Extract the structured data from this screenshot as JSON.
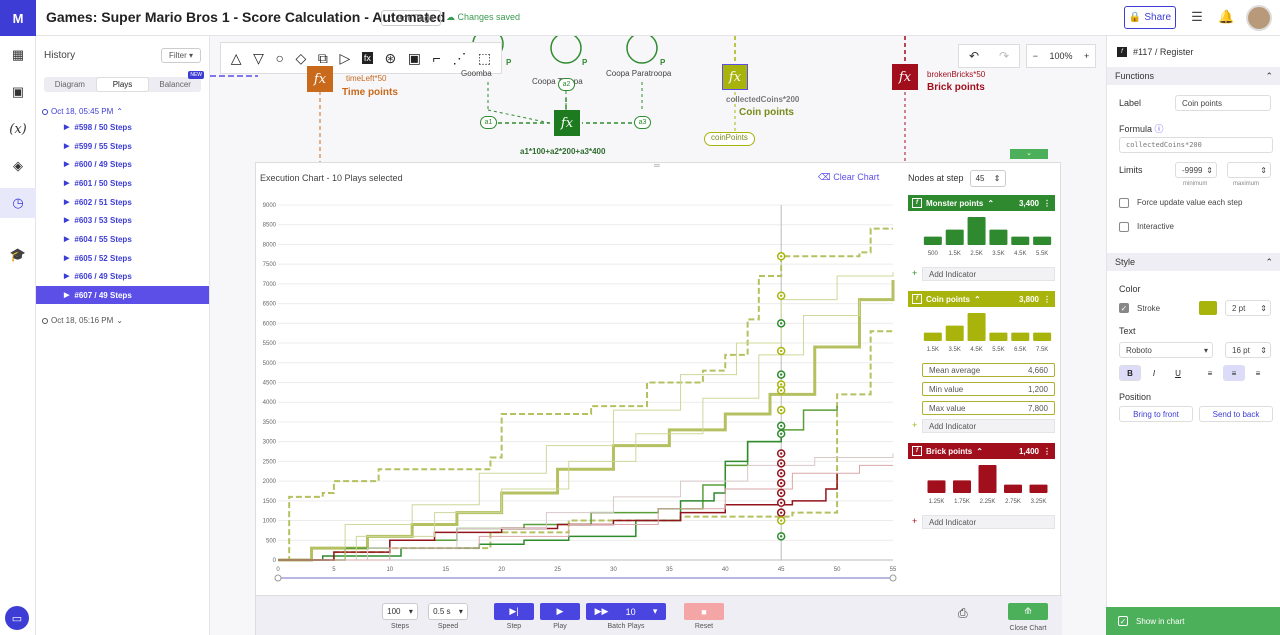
{
  "app": {
    "logo": "M",
    "title": "Games: Super Mario Bros 1 - Score Calculation - Automated",
    "add_tags": "Add Tags",
    "saved": "Changes saved",
    "share": "Share"
  },
  "icons": {
    "logo": "logo-icon",
    "sliders": "sliders-icon",
    "bell": "bell-icon"
  },
  "history": {
    "title": "History",
    "filter": "Filter",
    "tabs": [
      "Diagram",
      "Plays",
      "Balancer"
    ],
    "new_badge": "NEW",
    "session1": "Oct 18, 05:45 PM",
    "items": [
      "#598 / 50 Steps",
      "#599 / 55 Steps",
      "#600 / 49 Steps",
      "#601 / 50 Steps",
      "#602 / 51 Steps",
      "#603 / 53 Steps",
      "#604 / 55 Steps",
      "#605 / 52 Steps",
      "#606 / 49 Steps",
      "#607 / 49 Steps"
    ],
    "session2": "Oct 18, 05:16 PM"
  },
  "canvas": {
    "zoom": "100%",
    "time_node": {
      "formula": "timeLeft*50",
      "title": "Time points",
      "color": "#c8691c"
    },
    "goomba": "Goomba",
    "coopa": "Coopa Troopa",
    "coopa_para": "Coopa Paratroopa",
    "pool_p": "P",
    "a1": "a1",
    "a2": "a2",
    "a3": "a3",
    "monster_formula": "a1*100+a2*200+a3*400",
    "coin_node": {
      "formula": "collectedCoins*200",
      "title": "Coin points",
      "label": "coinPoints",
      "color": "#a8b40c"
    },
    "brick_node": {
      "formula": "brokenBricks*50",
      "title": "Brick points",
      "color": "#a10f1d"
    },
    "fx": "fx"
  },
  "chart": {
    "title": "Execution Chart  - 10 Plays selected",
    "clear": "Clear Chart",
    "nodes_label": "Nodes at step",
    "nodes_step": "45",
    "monster": {
      "label": "Monster points",
      "value": "3,400",
      "color": "#2f8a2f",
      "bins": [
        "500",
        "1.5K",
        "2.5K",
        "3.5K",
        "4.5K",
        "5.5K"
      ],
      "heights": [
        0.3,
        0.55,
        1,
        0.55,
        0.3,
        0.3
      ]
    },
    "coin": {
      "label": "Coin points",
      "value": "3,800",
      "color": "#a8b40c",
      "bins": [
        "1.5K",
        "3.5K",
        "4.5K",
        "5.5K",
        "6.5K",
        "7.5K"
      ],
      "heights": [
        0.3,
        0.55,
        1,
        0.3,
        0.3,
        0.3
      ]
    },
    "brick": {
      "label": "Brick points",
      "value": "1,400",
      "color": "#a10f1d",
      "bins": [
        "1.25K",
        "1.75K",
        "2.25K",
        "2.75K",
        "3.25K"
      ],
      "heights": [
        0.45,
        0.45,
        1,
        0.3,
        0.3
      ]
    },
    "stats": [
      {
        "label": "Mean average",
        "value": "4,660"
      },
      {
        "label": "Min value",
        "value": "1,200"
      },
      {
        "label": "Max value",
        "value": "7,800"
      }
    ],
    "add_indicator": "Add Indicator",
    "controls": {
      "steps": "100",
      "steps_label": "Steps",
      "speed": "0.5 s",
      "speed_label": "Speed",
      "step_label": "Step",
      "play_label": "Play",
      "batch": "10",
      "batch_label": "Batch Plays",
      "reset_label": "Reset",
      "close_label": "Close Chart"
    }
  },
  "chart_data": {
    "type": "line",
    "xlim": [
      0,
      55
    ],
    "ylim": [
      0,
      9000
    ],
    "x_ticks": [
      0,
      5,
      10,
      15,
      20,
      25,
      30,
      35,
      40,
      45,
      50,
      55
    ],
    "y_ticks": [
      0,
      500,
      1000,
      1500,
      2000,
      2500,
      3000,
      3500,
      4000,
      4500,
      5000,
      5500,
      6000,
      6500,
      7000,
      7500,
      8000,
      8500,
      9000
    ],
    "current_step": 45,
    "series": [
      {
        "color": "#b5c060",
        "width": 3,
        "dash": false,
        "points": [
          [
            0,
            0
          ],
          [
            3,
            300
          ],
          [
            8,
            600
          ],
          [
            12,
            900
          ],
          [
            16,
            1200
          ],
          [
            20,
            1700
          ],
          [
            25,
            2300
          ],
          [
            30,
            2900
          ],
          [
            35,
            3300
          ],
          [
            40,
            3700
          ],
          [
            44,
            4200
          ],
          [
            48,
            5400
          ],
          [
            52,
            6600
          ],
          [
            55,
            7100
          ]
        ]
      },
      {
        "color": "#b5c060",
        "width": 2,
        "dash": true,
        "points": [
          [
            0,
            0
          ],
          [
            1,
            1600
          ],
          [
            4,
            1700
          ],
          [
            5,
            2000
          ],
          [
            9,
            2300
          ],
          [
            16,
            2300
          ],
          [
            19,
            2600
          ],
          [
            20,
            3700
          ],
          [
            28,
            3900
          ],
          [
            33,
            4500
          ],
          [
            38,
            4800
          ],
          [
            40,
            5200
          ],
          [
            42,
            6100
          ],
          [
            43,
            7200
          ],
          [
            45,
            7700
          ],
          [
            52,
            7800
          ],
          [
            53,
            8400
          ],
          [
            55,
            8400
          ]
        ]
      },
      {
        "color": "#b5c060",
        "width": 2,
        "dash": true,
        "points": [
          [
            0,
            0
          ],
          [
            5,
            200
          ],
          [
            10,
            300
          ],
          [
            18,
            300
          ],
          [
            19,
            700
          ],
          [
            26,
            1000
          ],
          [
            36,
            1100
          ],
          [
            46,
            1200
          ],
          [
            50,
            1300
          ],
          [
            50,
            4200
          ],
          [
            52,
            4200
          ],
          [
            53,
            5800
          ],
          [
            55,
            5800
          ]
        ]
      },
      {
        "color": "#5a9e3a",
        "width": 1.5,
        "dash": false,
        "points": [
          [
            0,
            0
          ],
          [
            6,
            300
          ],
          [
            10,
            500
          ],
          [
            16,
            800
          ],
          [
            22,
            900
          ],
          [
            28,
            1200
          ],
          [
            34,
            1300
          ],
          [
            38,
            1900
          ],
          [
            40,
            2400
          ],
          [
            42,
            3000
          ],
          [
            45,
            3300
          ],
          [
            47,
            3800
          ],
          [
            50,
            3900
          ]
        ]
      },
      {
        "color": "#2e8b2e",
        "width": 1.5,
        "dash": false,
        "points": [
          [
            0,
            0
          ],
          [
            4,
            100
          ],
          [
            11,
            300
          ],
          [
            18,
            400
          ],
          [
            22,
            500
          ],
          [
            26,
            600
          ],
          [
            32,
            1000
          ],
          [
            36,
            1500
          ],
          [
            39,
            1700
          ],
          [
            40,
            2500
          ],
          [
            42,
            3000
          ],
          [
            45,
            3100
          ]
        ]
      },
      {
        "color": "#93141c",
        "width": 1.5,
        "dash": false,
        "points": [
          [
            0,
            0
          ],
          [
            5,
            200
          ],
          [
            10,
            500
          ],
          [
            14,
            700
          ],
          [
            20,
            800
          ],
          [
            25,
            900
          ],
          [
            30,
            1000
          ],
          [
            36,
            1200
          ],
          [
            40,
            1400
          ],
          [
            46,
            1500
          ],
          [
            49,
            1800
          ],
          [
            50,
            2200
          ]
        ]
      },
      {
        "color": "#cdd89a",
        "width": 1,
        "dash": false,
        "points": [
          [
            0,
            0
          ],
          [
            6,
            900
          ],
          [
            12,
            1400
          ],
          [
            18,
            2200
          ],
          [
            24,
            2900
          ],
          [
            30,
            3800
          ],
          [
            36,
            4700
          ],
          [
            41,
            5500
          ],
          [
            45,
            6600
          ],
          [
            50,
            7200
          ],
          [
            55,
            7300
          ]
        ]
      },
      {
        "color": "#cdd89a",
        "width": 1,
        "dash": false,
        "points": [
          [
            0,
            0
          ],
          [
            7,
            600
          ],
          [
            14,
            1200
          ],
          [
            20,
            1800
          ],
          [
            26,
            2500
          ],
          [
            32,
            3200
          ],
          [
            38,
            4100
          ],
          [
            43,
            5200
          ],
          [
            47,
            6200
          ],
          [
            52,
            6600
          ]
        ]
      },
      {
        "color": "#d8c8c8",
        "width": 1,
        "dash": false,
        "points": [
          [
            0,
            0
          ],
          [
            8,
            300
          ],
          [
            16,
            800
          ],
          [
            24,
            1200
          ],
          [
            30,
            1600
          ],
          [
            36,
            2000
          ],
          [
            42,
            2400
          ],
          [
            48,
            2600
          ],
          [
            55,
            2700
          ]
        ]
      },
      {
        "color": "#d9a7a7",
        "width": 1,
        "dash": false,
        "points": [
          [
            0,
            0
          ],
          [
            10,
            300
          ],
          [
            18,
            600
          ],
          [
            26,
            900
          ],
          [
            34,
            1300
          ],
          [
            40,
            1800
          ],
          [
            46,
            2200
          ],
          [
            52,
            2400
          ],
          [
            55,
            2400
          ]
        ]
      }
    ],
    "markers_at_current_step": [
      {
        "y": 7700,
        "color": "#a8b40c"
      },
      {
        "y": 6700,
        "color": "#a8b40c"
      },
      {
        "y": 6000,
        "color": "#2e8b2e"
      },
      {
        "y": 5300,
        "color": "#a8b40c"
      },
      {
        "y": 4700,
        "color": "#2e8b2e"
      },
      {
        "y": 4450,
        "color": "#a8b40c"
      },
      {
        "y": 4300,
        "color": "#a8b40c"
      },
      {
        "y": 3800,
        "color": "#a8b40c"
      },
      {
        "y": 3400,
        "color": "#2e8b2e"
      },
      {
        "y": 3200,
        "color": "#2e8b2e"
      },
      {
        "y": 2700,
        "color": "#93141c"
      },
      {
        "y": 2450,
        "color": "#93141c"
      },
      {
        "y": 2200,
        "color": "#93141c"
      },
      {
        "y": 1950,
        "color": "#93141c"
      },
      {
        "y": 1700,
        "color": "#93141c"
      },
      {
        "y": 1450,
        "color": "#93141c"
      },
      {
        "y": 1200,
        "color": "#93141c"
      },
      {
        "y": 1000,
        "color": "#a8b40c"
      },
      {
        "y": 600,
        "color": "#2e8b2e"
      }
    ]
  },
  "props": {
    "header": "#117 / Register",
    "functions": "Functions",
    "label_title": "Label",
    "label_value": "Coin points",
    "formula_title": "Formula",
    "formula_value": "collectedCoins*200",
    "limits_title": "Limits",
    "limit_min": "-9999",
    "limit_min_label": "minimum",
    "limit_max_label": "maximum",
    "force": "Force update value each step",
    "interactive": "Interactive",
    "style": "Style",
    "color_title": "Color",
    "stroke": "Stroke",
    "stroke_color": "#a8b40c",
    "stroke_size": "2 pt",
    "text_title": "Text",
    "font": "Roboto",
    "font_size": "16 pt",
    "bold": "B",
    "italic": "I",
    "underline": "U",
    "position_title": "Position",
    "front": "Bring to front",
    "back": "Send to back",
    "show_chart": "Show in chart"
  }
}
